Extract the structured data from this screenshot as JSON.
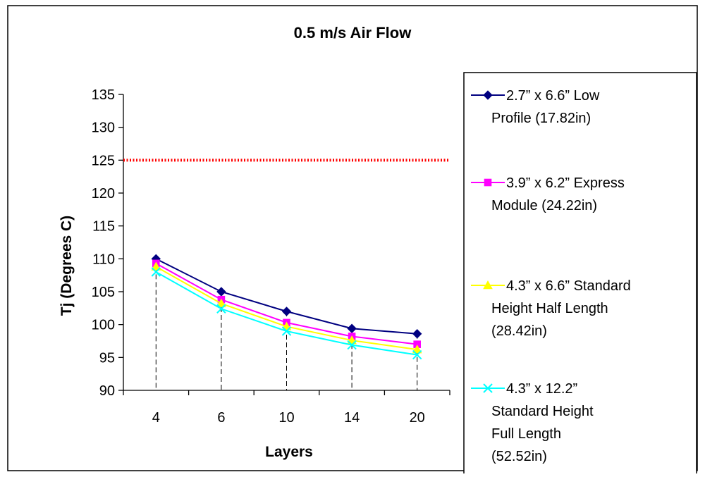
{
  "chart_data": {
    "type": "line",
    "title": "0.5 m/s Air Flow",
    "xlabel": "Layers",
    "ylabel": "Tj (Degrees C)",
    "categories": [
      "4",
      "6",
      "10",
      "14",
      "20"
    ],
    "ylim": [
      90,
      135
    ],
    "yticks": [
      90,
      95,
      100,
      105,
      110,
      115,
      120,
      125,
      130,
      135
    ],
    "grid": false,
    "legend_position": "right",
    "threshold": {
      "value": 125,
      "color": "#FF0000",
      "style": "dotted"
    },
    "series": [
      {
        "name": "2.7” x 6.6” Low Profile (17.82in)",
        "legend_lines": [
          "2.7” x 6.6” Low",
          "Profile (17.82in)"
        ],
        "color": "#000080",
        "marker": "diamond",
        "values": [
          110,
          105,
          102,
          99.4,
          98.6
        ]
      },
      {
        "name": "3.9” x 6.2” Express Module (24.22in)",
        "legend_lines": [
          "3.9” x 6.2” Express",
          "Module (24.22in)"
        ],
        "color": "#FF00FF",
        "marker": "square",
        "values": [
          109.3,
          103.8,
          100.3,
          98.2,
          97
        ]
      },
      {
        "name": "4.3” x 6.6” Standard Height Half Length (28.42in)",
        "legend_lines": [
          "4.3” x 6.6” Standard",
          "Height Half Length",
          "(28.42in)"
        ],
        "color": "#FFFF00",
        "marker": "triangle",
        "values": [
          108.8,
          103.2,
          99.7,
          97.6,
          96.2
        ]
      },
      {
        "name": "4.3” x 12.2” Standard Height Full Length (52.52in)",
        "legend_lines": [
          "4.3” x 12.2”",
          "Standard Height",
          "Full Length",
          "(52.52in)"
        ],
        "color": "#00FFFF",
        "marker": "x",
        "values": [
          108,
          102.4,
          99,
          96.9,
          95.4
        ]
      }
    ]
  }
}
